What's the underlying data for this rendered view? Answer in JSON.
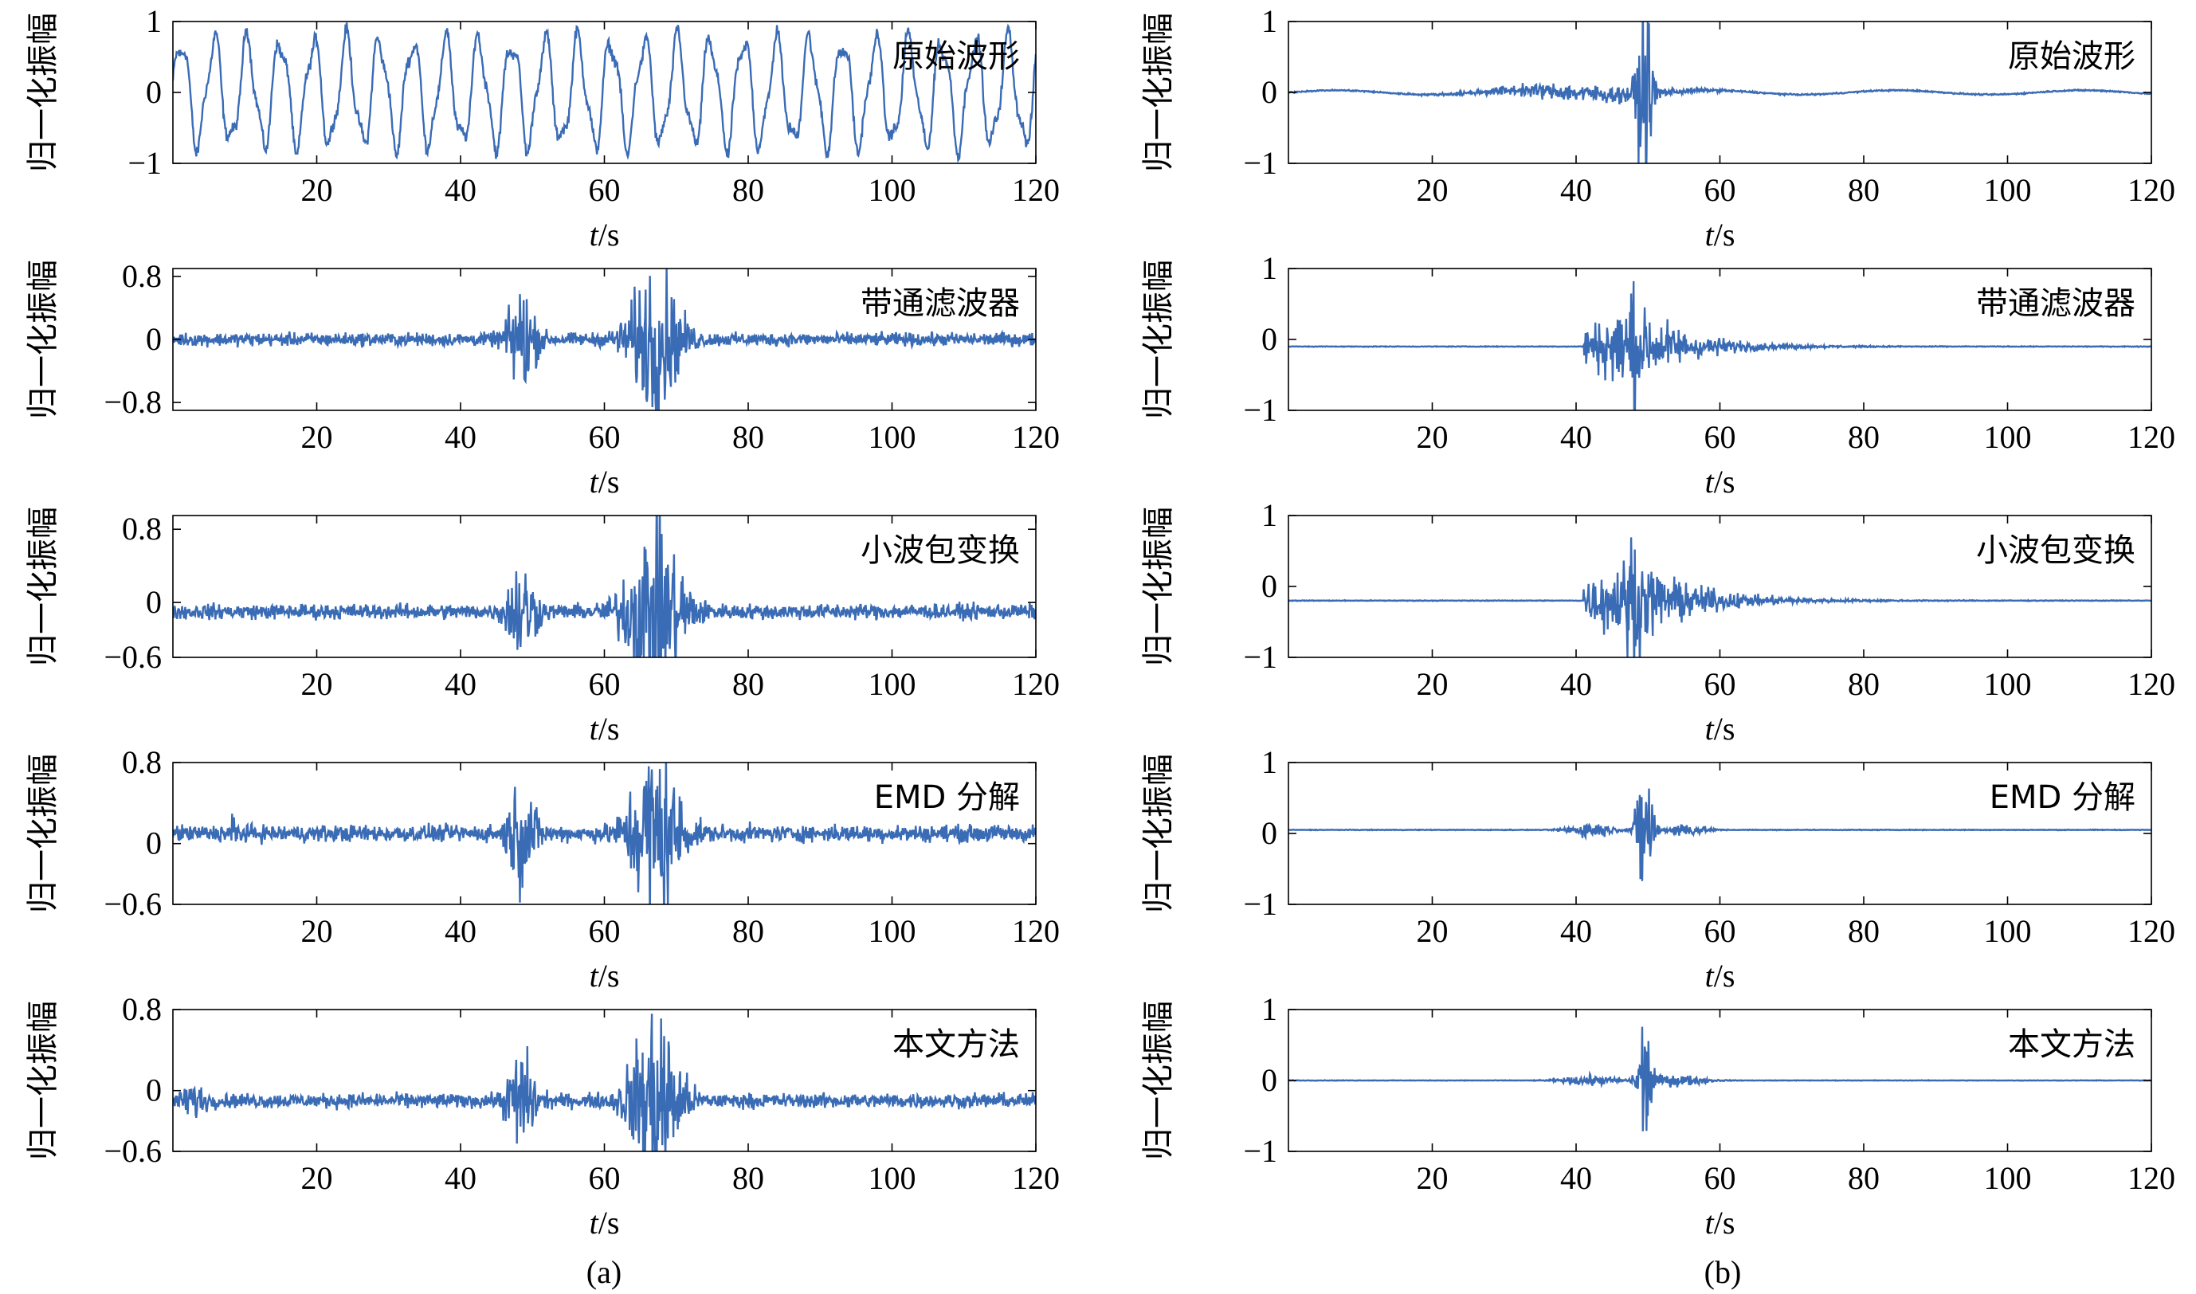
{
  "chart_data": [
    {
      "type": "line",
      "column": "a",
      "annotation": "原始波形",
      "ylabel": "归一化振幅",
      "xlabel_italic": "t",
      "xlabel_unit": "/s",
      "xlim": [
        0,
        120
      ],
      "xticks": [
        20,
        40,
        60,
        80,
        100,
        120
      ],
      "ylim": [
        -1,
        1
      ],
      "yticks": [
        -1,
        0,
        1
      ],
      "ytick_labels": [
        "−1",
        "0",
        "1"
      ],
      "series": [
        {
          "color": "#3a6bb5",
          "signal": {
            "kind": "oscillation",
            "period_s": 4.6,
            "amplitude": 0.72,
            "baseline": 0,
            "noise": 0.07
          }
        }
      ]
    },
    {
      "type": "line",
      "column": "a",
      "annotation": "带通滤波器",
      "ylabel": "归一化振幅",
      "xlabel_italic": "t",
      "xlabel_unit": "/s",
      "xlim": [
        0,
        120
      ],
      "xticks": [
        20,
        40,
        60,
        80,
        100,
        120
      ],
      "ylim": [
        -0.9,
        0.9
      ],
      "yticks": [
        -0.8,
        0,
        0.8
      ],
      "ytick_labels": [
        "−0.8",
        "0",
        "0.8"
      ],
      "series": [
        {
          "color": "#3a6bb5",
          "signal": {
            "kind": "bursts",
            "baseline": 0,
            "noise": 0.07,
            "bursts": [
              [
                48.5,
                0.55,
                2.0
              ],
              [
                67,
                0.8,
                3.5
              ]
            ]
          }
        }
      ]
    },
    {
      "type": "line",
      "column": "a",
      "annotation": "小波包变换",
      "ylabel": "归一化振幅",
      "xlabel_italic": "t",
      "xlabel_unit": "/s",
      "xlim": [
        0,
        120
      ],
      "xticks": [
        20,
        40,
        60,
        80,
        100,
        120
      ],
      "ylim": [
        -0.6,
        0.95
      ],
      "yticks": [
        -0.6,
        0,
        0.8
      ],
      "ytick_labels": [
        "−0.6",
        "0",
        "0.8"
      ],
      "series": [
        {
          "color": "#3a6bb5",
          "signal": {
            "kind": "bursts",
            "baseline": -0.1,
            "noise": 0.07,
            "bursts": [
              [
                48.5,
                0.45,
                2.0
              ],
              [
                67,
                0.85,
                4.0
              ]
            ]
          }
        }
      ]
    },
    {
      "type": "line",
      "column": "a",
      "annotation": "EMD 分解",
      "ylabel": "归一化振幅",
      "xlabel_italic": "t",
      "xlabel_unit": "/s",
      "xlim": [
        0,
        120
      ],
      "xticks": [
        20,
        40,
        60,
        80,
        100,
        120
      ],
      "ylim": [
        -0.6,
        0.8
      ],
      "yticks": [
        -0.6,
        0,
        0.8
      ],
      "ytick_labels": [
        "−0.6",
        "0",
        "0.8"
      ],
      "series": [
        {
          "color": "#3a6bb5",
          "signal": {
            "kind": "bursts",
            "baseline": 0.1,
            "noise": 0.07,
            "bursts": [
              [
                8.5,
                0.12,
                0.6
              ],
              [
                48.5,
                0.4,
                2.0
              ],
              [
                67,
                0.75,
                3.5
              ]
            ]
          }
        }
      ]
    },
    {
      "type": "line",
      "column": "a",
      "annotation": "本文方法",
      "ylabel": "归一化振幅",
      "xlabel_italic": "t",
      "xlabel_unit": "/s",
      "xlim": [
        0,
        120
      ],
      "xticks": [
        20,
        40,
        60,
        80,
        100,
        120
      ],
      "ylim": [
        -0.6,
        0.8
      ],
      "yticks": [
        -0.6,
        0,
        0.8
      ],
      "ytick_labels": [
        "−0.6",
        "0",
        "0.8"
      ],
      "series": [
        {
          "color": "#3a6bb5",
          "signal": {
            "kind": "bursts",
            "baseline": -0.1,
            "noise": 0.06,
            "bursts": [
              [
                3,
                0.12,
                1.5
              ],
              [
                48.5,
                0.4,
                2.0
              ],
              [
                67,
                0.75,
                3.5
              ]
            ]
          }
        }
      ]
    },
    {
      "type": "line",
      "column": "b",
      "annotation": "原始波形",
      "ylabel": "归一化振幅",
      "xlabel_italic": "t",
      "xlabel_unit": "/s",
      "xlim": [
        0,
        120
      ],
      "xticks": [
        20,
        40,
        60,
        80,
        100,
        120
      ],
      "ylim": [
        -1,
        1
      ],
      "yticks": [
        -1,
        0,
        1
      ],
      "ytick_labels": [
        "−1",
        "0",
        "1"
      ],
      "series": [
        {
          "color": "#3a6bb5",
          "signal": {
            "kind": "bursts",
            "baseline": 0.0,
            "noise": 0.008,
            "wobble": 0.03,
            "bursts": [
              [
                41,
                0.1,
                12
              ],
              [
                49.5,
                0.95,
                1.2
              ]
            ]
          }
        }
      ]
    },
    {
      "type": "line",
      "column": "b",
      "annotation": "带通滤波器",
      "ylabel": "归一化振幅",
      "xlabel_italic": "t",
      "xlabel_unit": "/s",
      "xlim": [
        0,
        120
      ],
      "xticks": [
        20,
        40,
        60,
        80,
        100,
        120
      ],
      "ylim": [
        -1,
        1
      ],
      "yticks": [
        -1,
        0,
        1
      ],
      "ytick_labels": [
        "−1",
        "0",
        "1"
      ],
      "series": [
        {
          "color": "#3a6bb5",
          "signal": {
            "kind": "onset",
            "baseline": -0.1,
            "noise": 0.004,
            "onset": 41,
            "peak": 48,
            "amp": 0.95,
            "decay": 7
          }
        }
      ]
    },
    {
      "type": "line",
      "column": "b",
      "annotation": "小波包变换",
      "ylabel": "归一化振幅",
      "xlabel_italic": "t",
      "xlabel_unit": "/s",
      "xlim": [
        0,
        120
      ],
      "xticks": [
        20,
        40,
        60,
        80,
        100,
        120
      ],
      "ylim": [
        -1,
        1
      ],
      "yticks": [
        -1,
        0,
        1
      ],
      "ytick_labels": [
        "−1",
        "0",
        "1"
      ],
      "series": [
        {
          "color": "#3a6bb5",
          "signal": {
            "kind": "onset",
            "baseline": -0.2,
            "noise": 0.004,
            "onset": 41,
            "peak": 48,
            "amp": 0.95,
            "decay": 8
          }
        }
      ]
    },
    {
      "type": "line",
      "column": "b",
      "annotation": "EMD 分解",
      "ylabel": "归一化振幅",
      "xlabel_italic": "t",
      "xlabel_unit": "/s",
      "xlim": [
        0,
        120
      ],
      "xticks": [
        20,
        40,
        60,
        80,
        100,
        120
      ],
      "ylim": [
        -1,
        1
      ],
      "yticks": [
        -1,
        0,
        1
      ],
      "ytick_labels": [
        "−1",
        "0",
        "1"
      ],
      "series": [
        {
          "color": "#3a6bb5",
          "signal": {
            "kind": "bursts",
            "baseline": 0.05,
            "noise": 0.004,
            "bursts": [
              [
                42,
                0.1,
                3
              ],
              [
                49.5,
                0.95,
                1.1
              ],
              [
                55,
                0.08,
                3
              ]
            ]
          }
        }
      ]
    },
    {
      "type": "line",
      "column": "b",
      "annotation": "本文方法",
      "ylabel": "归一化振幅",
      "xlabel_italic": "t",
      "xlabel_unit": "/s",
      "xlim": [
        0,
        120
      ],
      "xticks": [
        20,
        40,
        60,
        80,
        100,
        120
      ],
      "ylim": [
        -1,
        1
      ],
      "yticks": [
        -1,
        0,
        1
      ],
      "ytick_labels": [
        "−1",
        "0",
        "1"
      ],
      "series": [
        {
          "color": "#3a6bb5",
          "signal": {
            "kind": "bursts",
            "baseline": 0.0,
            "noise": 0.003,
            "bursts": [
              [
                42,
                0.06,
                4
              ],
              [
                49.5,
                0.82,
                1.0
              ],
              [
                54,
                0.07,
                4
              ]
            ]
          }
        }
      ]
    }
  ],
  "captions": [
    "(a)",
    "(b)"
  ]
}
